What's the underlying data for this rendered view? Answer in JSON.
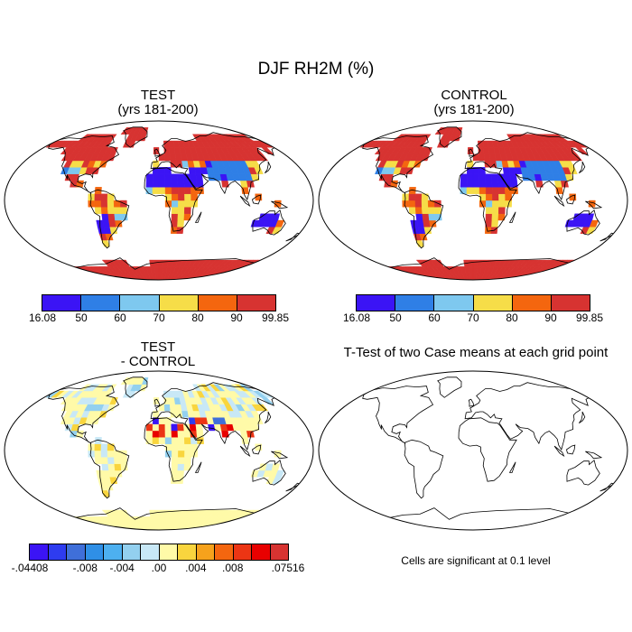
{
  "title": "DJF RH2M (%)",
  "panels": {
    "test": {
      "title": "TEST",
      "subtitle": "(yrs 181-200)"
    },
    "control": {
      "title": "CONTROL",
      "subtitle": "(yrs 181-200)"
    },
    "diff": {
      "title": "TEST",
      "subtitle": "- CONTROL"
    },
    "ttest": {
      "title": "T-Test of two Case means at each grid point"
    }
  },
  "colorbar_main": {
    "colors": [
      "#3b14f5",
      "#2f7fe6",
      "#7ec8ef",
      "#f6dd48",
      "#f4660f",
      "#d73331"
    ],
    "labels": [
      "16.08",
      "50",
      "60",
      "70",
      "80",
      "90",
      "99.85"
    ]
  },
  "colorbar_diff": {
    "colors": [
      "#3b14f5",
      "#2e3cf0",
      "#3f6fd9",
      "#2f8fe6",
      "#4db0f0",
      "#93d0ef",
      "#c8e8f6",
      "#fffaa8",
      "#f9d53e",
      "#f6a21c",
      "#f4660f",
      "#ec3514",
      "#e80000",
      "#d73331"
    ],
    "labels": [
      "-.04408",
      "-.008",
      "-.004",
      ".00",
      ".004",
      ".008",
      ".07516"
    ]
  },
  "note": "Cells are significant at 0.1 level"
}
